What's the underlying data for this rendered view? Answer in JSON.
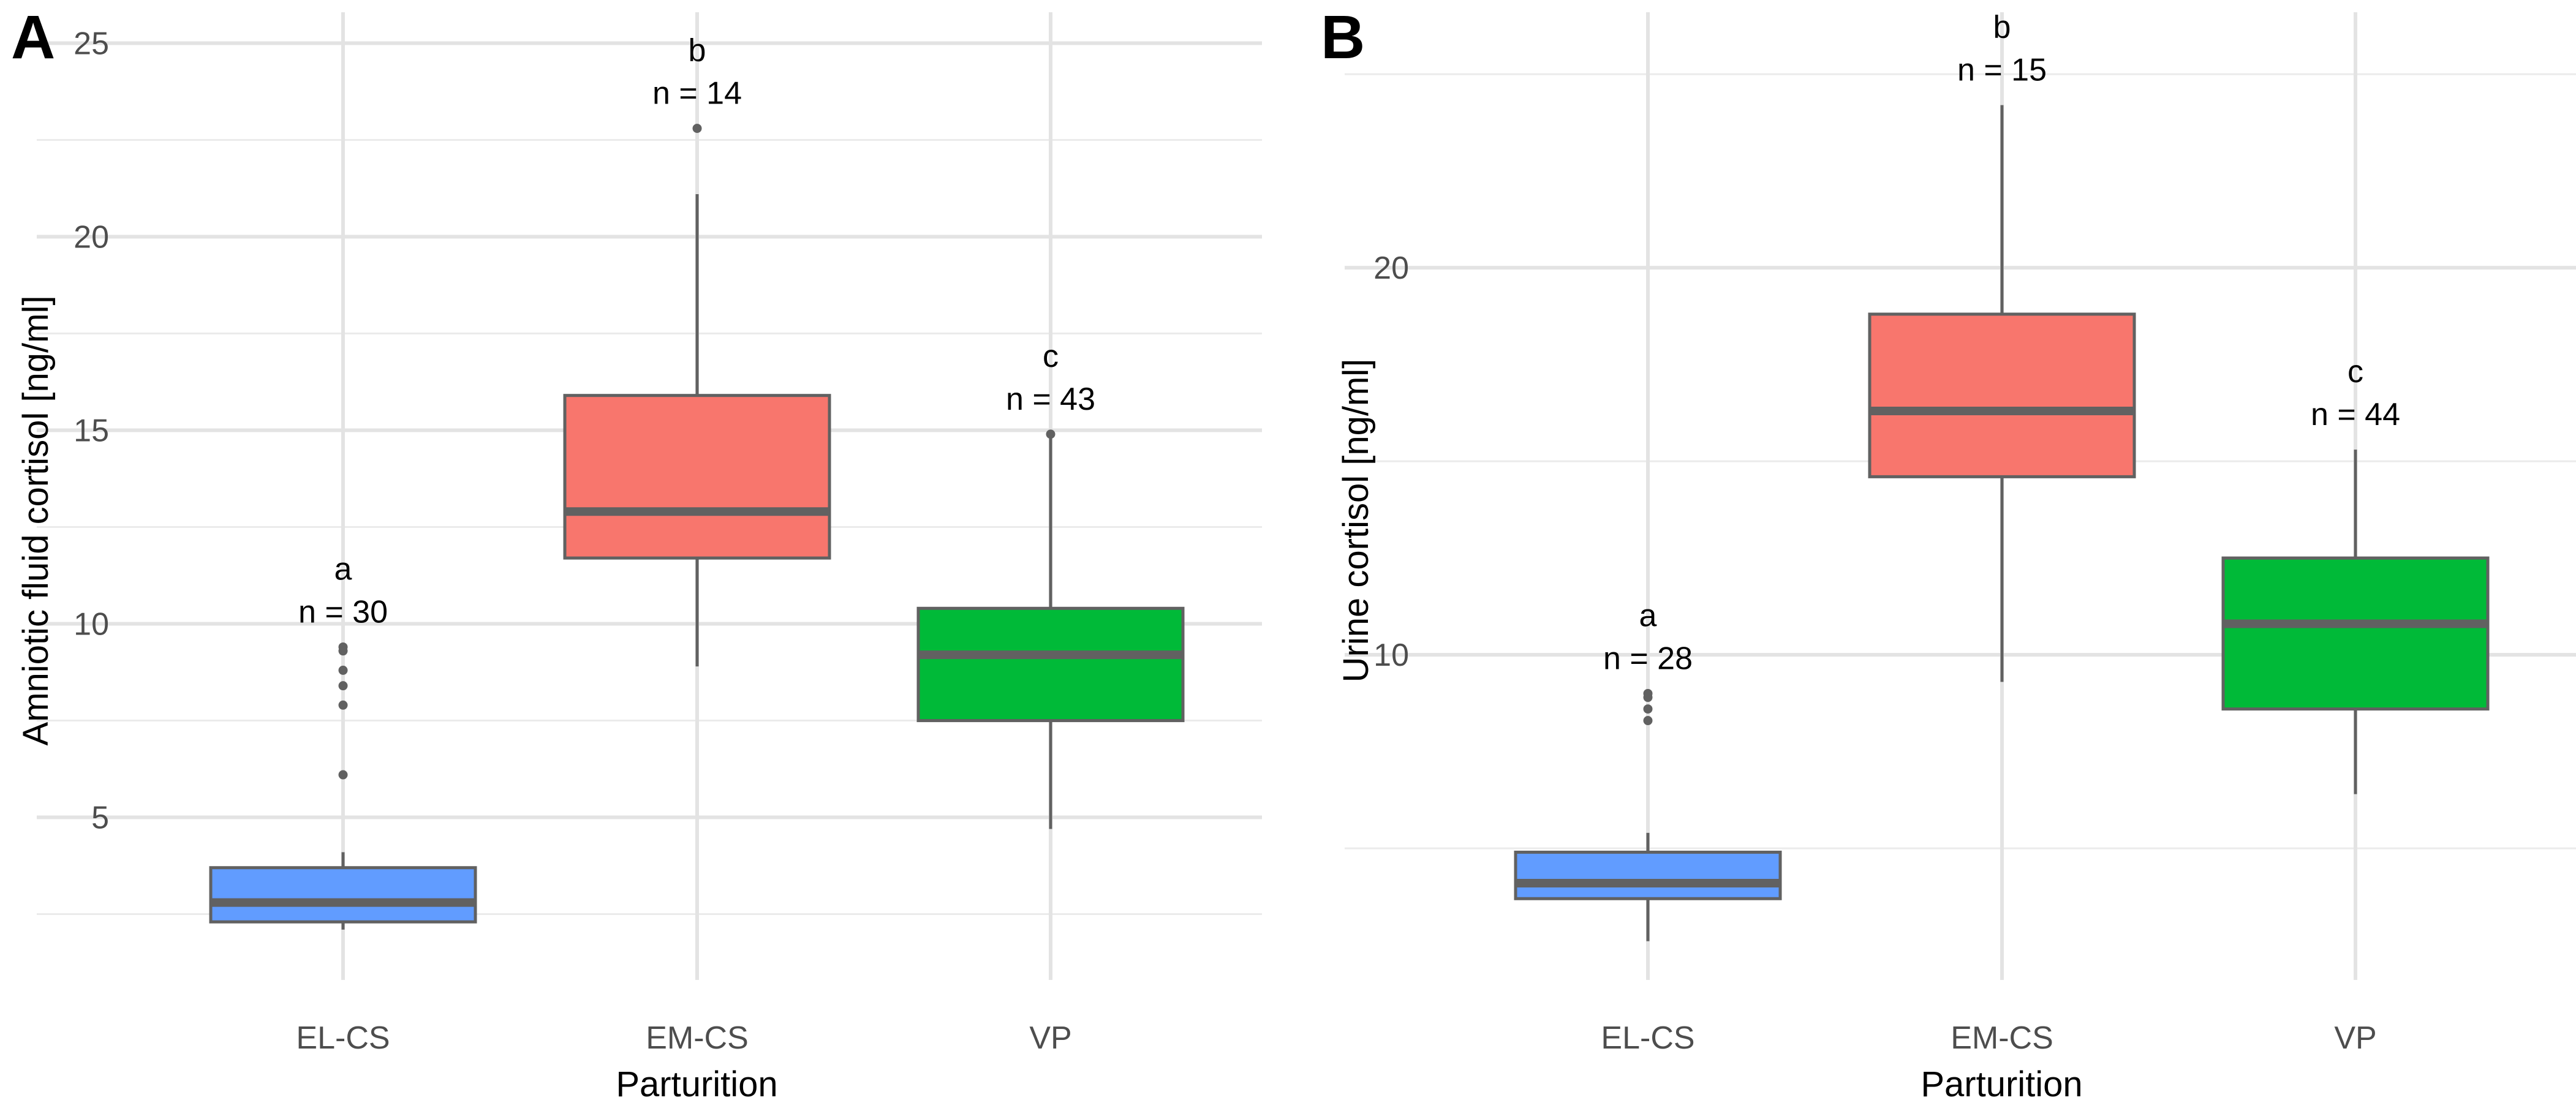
{
  "chart_data": [
    {
      "type": "box",
      "panel_label": "A",
      "title": "",
      "xlabel": "Parturition",
      "ylabel": "Amniotic fluid cortisol [ng/ml]",
      "categories": [
        "EL-CS",
        "EM-CS",
        "VP"
      ],
      "ylim": [
        0.8,
        25.8
      ],
      "yticks": [
        5,
        10,
        15,
        20,
        25
      ],
      "tick_labels": [
        "5",
        "10",
        "15",
        "20",
        "25"
      ],
      "minor_gridlines": [
        2.5,
        7.5,
        12.5,
        17.5,
        22.5
      ],
      "grid": true,
      "legend": "none",
      "boxes": [
        {
          "category": "EL-CS",
          "color": "#619CFF",
          "whisker_low": 2.1,
          "q1": 2.3,
          "median": 2.8,
          "q3": 3.7,
          "whisker_high": 4.1,
          "outliers": [
            6.1,
            7.9,
            8.4,
            8.8,
            9.3,
            9.4
          ],
          "letter": "a",
          "n_label": "n = 30"
        },
        {
          "category": "EM-CS",
          "color": "#F8766D",
          "whisker_low": 8.9,
          "q1": 11.7,
          "median": 12.9,
          "q3": 15.9,
          "whisker_high": 21.1,
          "outliers": [
            22.8
          ],
          "letter": "b",
          "n_label": "n = 14"
        },
        {
          "category": "VP",
          "color": "#00BA38",
          "whisker_low": 4.7,
          "q1": 7.5,
          "median": 9.2,
          "q3": 10.4,
          "whisker_high": 14.9,
          "outliers": [
            14.9
          ],
          "letter": "c",
          "n_label": "n = 43"
        }
      ]
    },
    {
      "type": "box",
      "panel_label": "B",
      "title": "",
      "xlabel": "Parturition",
      "ylabel": "Urine cortisol [ng/ml]",
      "categories": [
        "EL-CS",
        "EM-CS",
        "VP"
      ],
      "ylim": [
        1.6,
        26.6
      ],
      "yticks": [
        10,
        20
      ],
      "tick_labels": [
        "10",
        "20"
      ],
      "minor_gridlines": [
        5,
        15,
        25
      ],
      "grid": true,
      "legend": "none",
      "boxes": [
        {
          "category": "EL-CS",
          "color": "#619CFF",
          "whisker_low": 2.6,
          "q1": 3.7,
          "median": 4.1,
          "q3": 4.9,
          "whisker_high": 5.4,
          "outliers": [
            8.3,
            8.6,
            8.9,
            9.0
          ],
          "letter": "a",
          "n_label": "n = 28"
        },
        {
          "category": "EM-CS",
          "color": "#F8766D",
          "whisker_low": 9.3,
          "q1": 14.6,
          "median": 16.3,
          "q3": 18.8,
          "whisker_high": 24.2,
          "outliers": [],
          "letter": "b",
          "n_label": "n = 15"
        },
        {
          "category": "VP",
          "color": "#00BA38",
          "whisker_low": 6.4,
          "q1": 8.6,
          "median": 10.8,
          "q3": 12.5,
          "whisker_high": 15.3,
          "outliers": [],
          "letter": "c",
          "n_label": "n = 44"
        }
      ]
    }
  ]
}
